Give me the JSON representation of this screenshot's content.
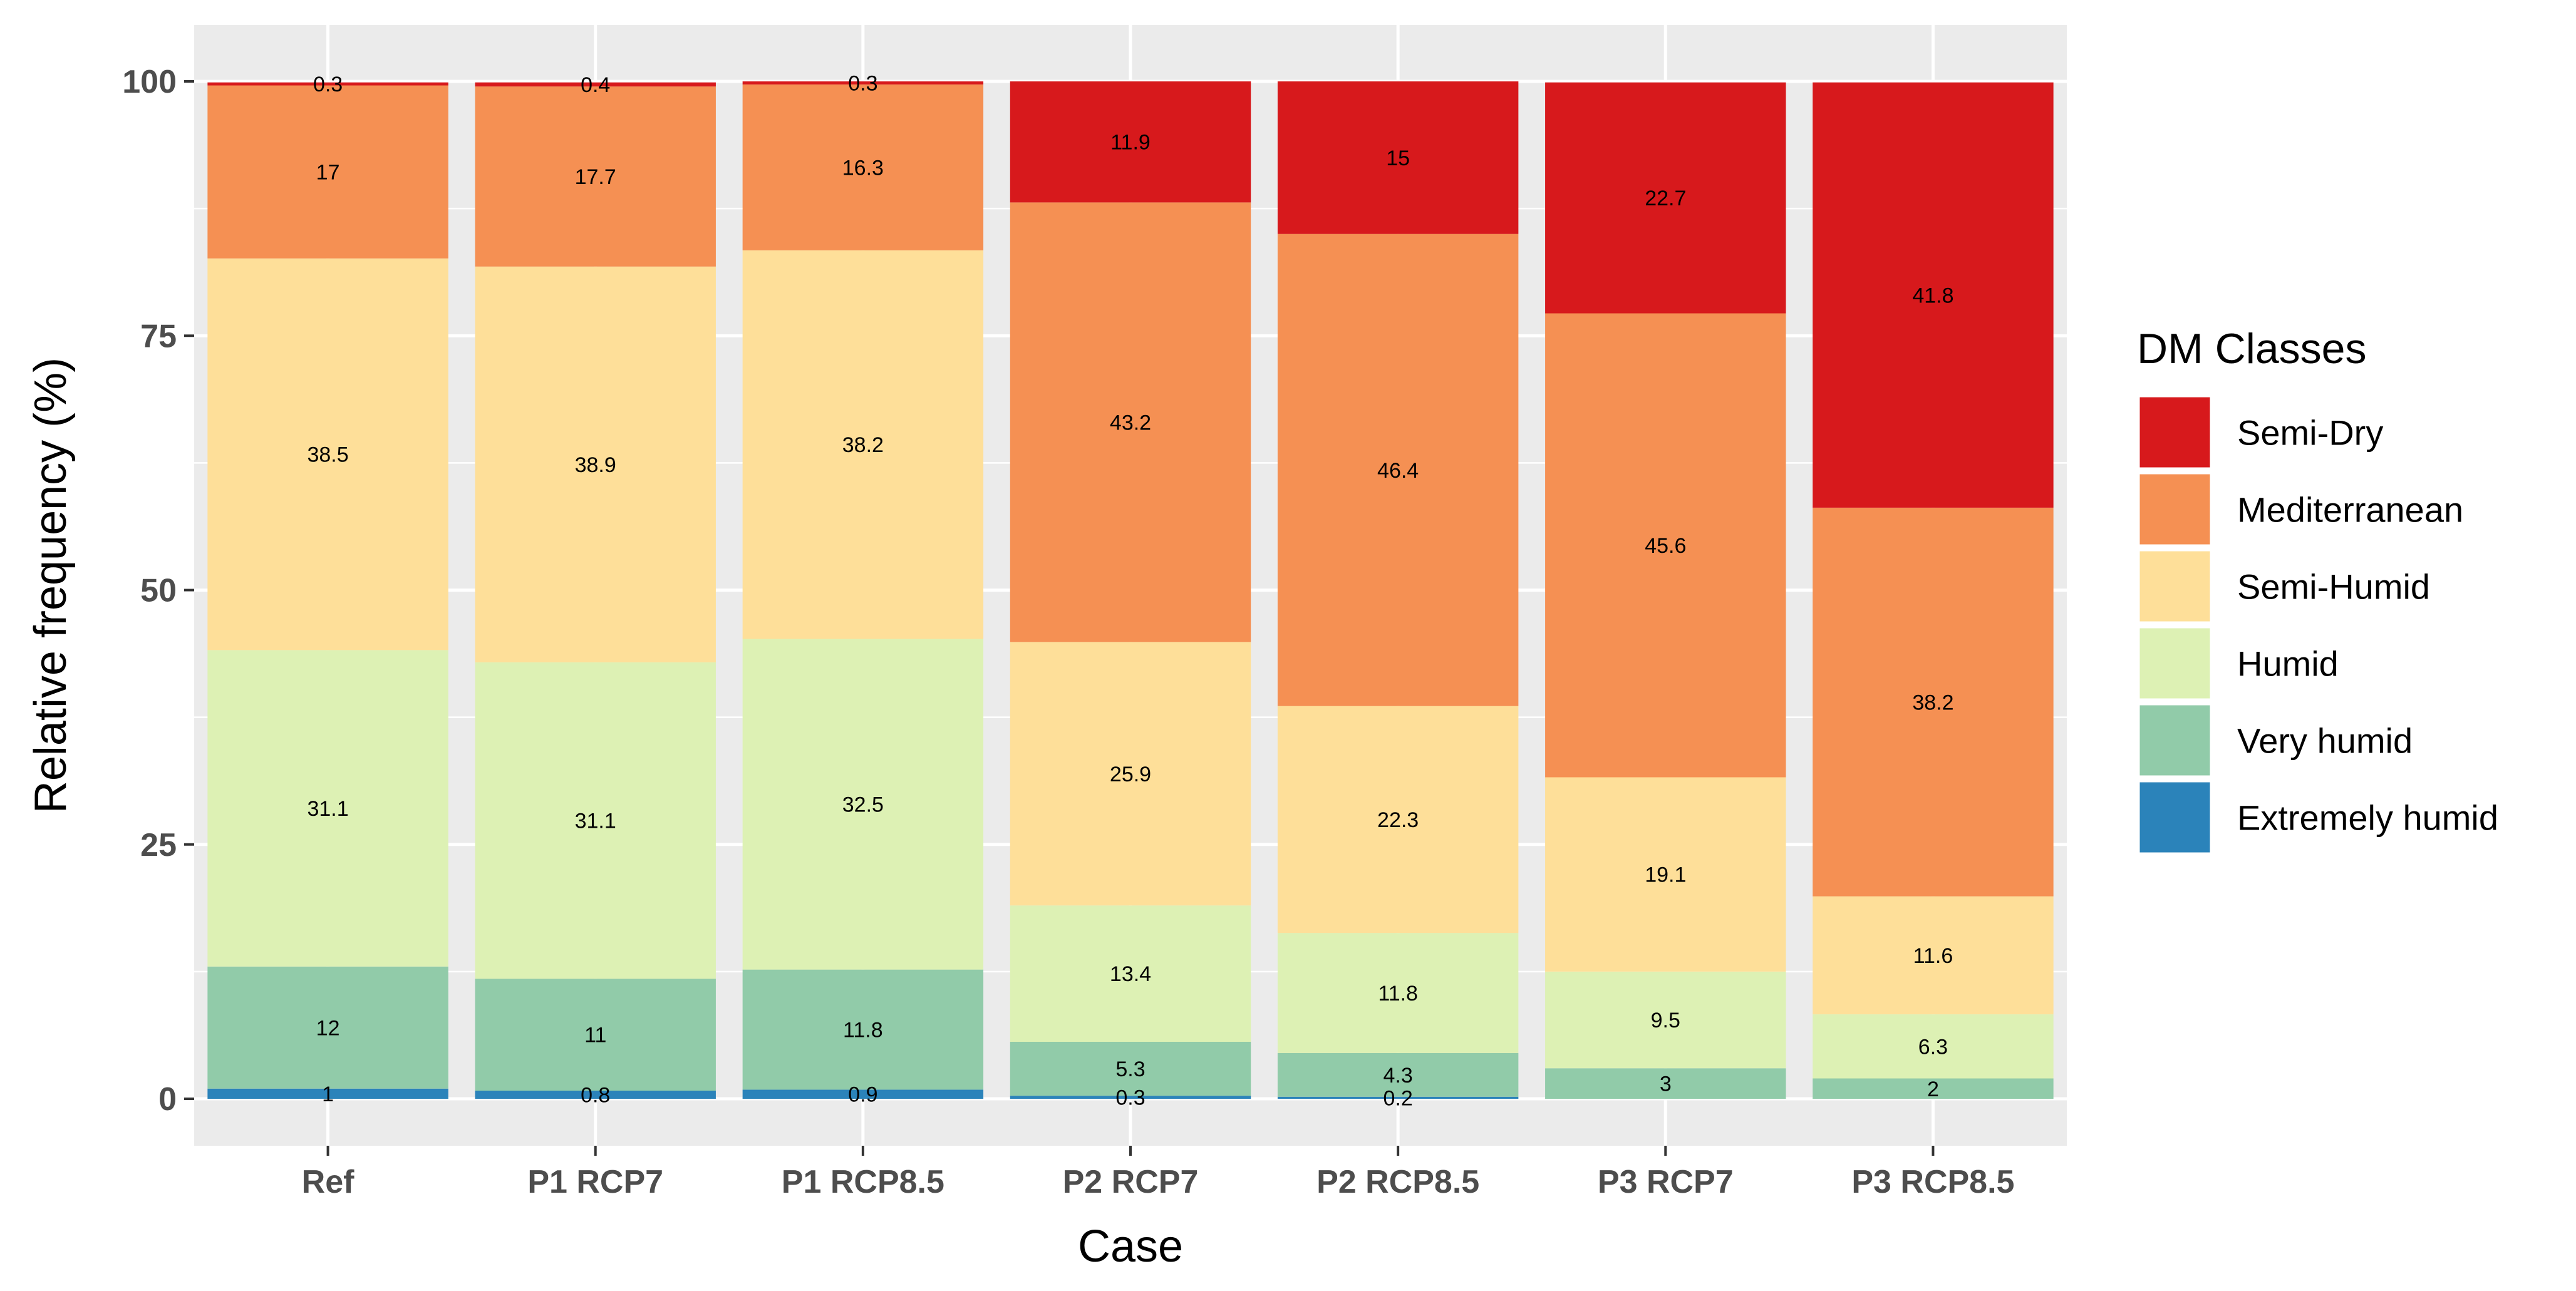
{
  "chart_data": {
    "type": "stacked-bar",
    "xlabel": "Case",
    "ylabel": "Relative frequency (%)",
    "ylim": [
      0,
      100
    ],
    "yticks": [
      0,
      25,
      50,
      75,
      100
    ],
    "categories": [
      "Ref",
      "P1 RCP7",
      "P1 RCP8.5",
      "P2 RCP7",
      "P2 RCP8.5",
      "P3 RCP7",
      "P3 RCP8.5"
    ],
    "legend_title": "DM Classes",
    "series": [
      {
        "name": "Extremely humid",
        "color": "#2b83ba",
        "values": [
          1,
          0.8,
          0.9,
          0.3,
          0.2,
          null,
          null
        ]
      },
      {
        "name": "Very humid",
        "color": "#91cba9",
        "values": [
          12,
          11,
          11.8,
          5.3,
          4.3,
          3,
          2
        ]
      },
      {
        "name": "Humid",
        "color": "#ddf1b4",
        "values": [
          31.1,
          31.1,
          32.5,
          13.4,
          11.8,
          9.5,
          6.3
        ]
      },
      {
        "name": "Semi-Humid",
        "color": "#fedf99",
        "values": [
          38.5,
          38.9,
          38.2,
          25.9,
          22.3,
          19.1,
          11.6
        ]
      },
      {
        "name": "Mediterranean",
        "color": "#f59053",
        "values": [
          17,
          17.7,
          16.3,
          43.2,
          46.4,
          45.6,
          38.2
        ]
      },
      {
        "name": "Semi-Dry",
        "color": "#d7191c",
        "values": [
          0.3,
          0.4,
          0.3,
          11.9,
          15,
          22.7,
          41.8
        ]
      }
    ],
    "legend_order": [
      "Semi-Dry",
      "Mediterranean",
      "Semi-Humid",
      "Humid",
      "Very humid",
      "Extremely humid"
    ],
    "panel_background": "#ebebeb",
    "grid": true
  }
}
